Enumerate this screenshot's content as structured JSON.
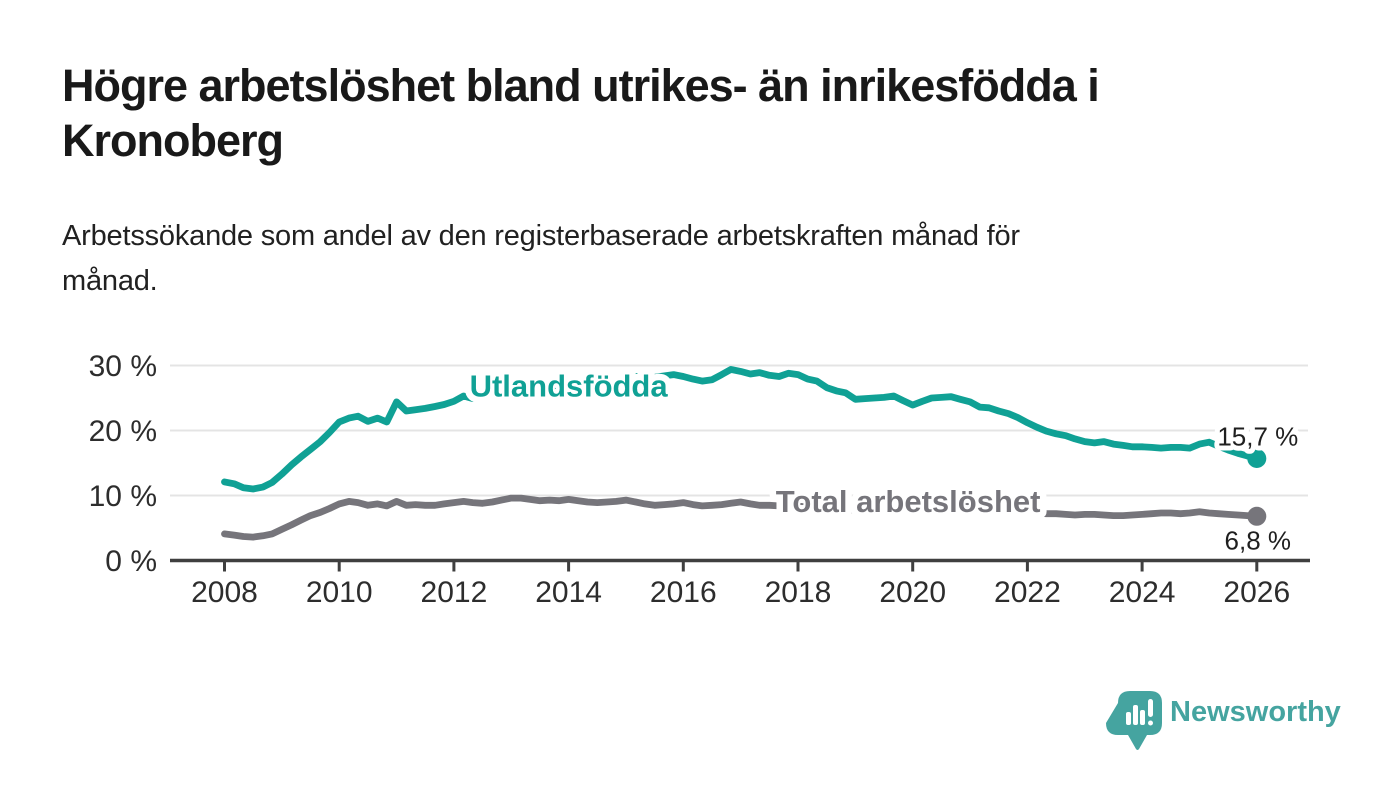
{
  "header": {
    "title_line1": "Högre arbetslöshet bland utrikes- än inrikesfödda i",
    "title_line2": "Kronoberg",
    "subtitle_line1": "Arbetssökande som andel av den registerbaserade arbetskraften månad för",
    "subtitle_line2": "månad."
  },
  "branding": {
    "logo_text": "Newsworthy",
    "logo_icon": "newsworthy-pin-barchart-icon",
    "logo_color": "#45a4a0"
  },
  "chart_data": {
    "type": "line",
    "title": "Högre arbetslöshet bland utrikes- än inrikesfödda i Kronoberg",
    "subtitle": "Arbetssökande som andel av den registerbaserade arbetskraften månad för månad.",
    "unit": "%",
    "grid": "horizontal",
    "colors": {
      "grid": "#e4e4e4",
      "axis": "#3f3f3f",
      "tick_text": "#2d2d2d"
    },
    "x_axis": {
      "ticks": [
        "2008",
        "2010",
        "2012",
        "2014",
        "2016",
        "2018",
        "2020",
        "2022",
        "2024",
        "2026"
      ],
      "range": [
        2008,
        2026
      ]
    },
    "y_axis": {
      "ticks": [
        0,
        10,
        20,
        30
      ],
      "tick_suffix": " %",
      "range": [
        0,
        31
      ]
    },
    "series": [
      {
        "name": "Utlandsfödda",
        "color": "#10a195",
        "end_label": "15,7 %",
        "end_value": 15.7,
        "label_at": {
          "year": 2014.0,
          "value": 25.2
        },
        "points": [
          [
            2008.0,
            12.1
          ],
          [
            2008.17,
            11.8
          ],
          [
            2008.33,
            11.2
          ],
          [
            2008.5,
            11.0
          ],
          [
            2008.67,
            11.3
          ],
          [
            2008.83,
            12.0
          ],
          [
            2009.0,
            13.3
          ],
          [
            2009.17,
            14.7
          ],
          [
            2009.33,
            15.9
          ],
          [
            2009.5,
            17.1
          ],
          [
            2009.67,
            18.3
          ],
          [
            2009.83,
            19.7
          ],
          [
            2010.0,
            21.3
          ],
          [
            2010.17,
            21.9
          ],
          [
            2010.33,
            22.2
          ],
          [
            2010.5,
            21.4
          ],
          [
            2010.67,
            21.9
          ],
          [
            2010.83,
            21.3
          ],
          [
            2011.0,
            24.4
          ],
          [
            2011.17,
            23.0
          ],
          [
            2011.33,
            23.2
          ],
          [
            2011.5,
            23.4
          ],
          [
            2011.67,
            23.7
          ],
          [
            2011.83,
            24.0
          ],
          [
            2012.0,
            24.5
          ],
          [
            2012.17,
            25.3
          ],
          [
            2012.33,
            24.9
          ],
          [
            2012.5,
            25.1
          ],
          [
            2012.67,
            25.4
          ],
          [
            2012.83,
            25.7
          ],
          [
            2013.0,
            26.3
          ],
          [
            2013.17,
            26.5
          ],
          [
            2013.33,
            26.3
          ],
          [
            2013.5,
            26.5
          ],
          [
            2013.67,
            26.7
          ],
          [
            2013.83,
            27.0
          ],
          [
            2014.0,
            27.4
          ],
          [
            2014.17,
            27.2
          ],
          [
            2014.33,
            27.1
          ],
          [
            2014.5,
            27.3
          ],
          [
            2014.67,
            27.5
          ],
          [
            2014.83,
            27.8
          ],
          [
            2015.0,
            28.2
          ],
          [
            2015.17,
            28.3
          ],
          [
            2015.33,
            28.1
          ],
          [
            2015.5,
            28.2
          ],
          [
            2015.67,
            28.4
          ],
          [
            2015.83,
            28.6
          ],
          [
            2016.0,
            28.3
          ],
          [
            2016.17,
            27.9
          ],
          [
            2016.33,
            27.6
          ],
          [
            2016.5,
            27.8
          ],
          [
            2016.67,
            28.6
          ],
          [
            2016.83,
            29.4
          ],
          [
            2017.0,
            29.1
          ],
          [
            2017.17,
            28.7
          ],
          [
            2017.33,
            28.9
          ],
          [
            2017.5,
            28.5
          ],
          [
            2017.67,
            28.3
          ],
          [
            2017.83,
            28.8
          ],
          [
            2018.0,
            28.6
          ],
          [
            2018.17,
            27.9
          ],
          [
            2018.33,
            27.6
          ],
          [
            2018.5,
            26.6
          ],
          [
            2018.67,
            26.1
          ],
          [
            2018.83,
            25.8
          ],
          [
            2019.0,
            24.8
          ],
          [
            2019.17,
            24.9
          ],
          [
            2019.33,
            25.0
          ],
          [
            2019.5,
            25.1
          ],
          [
            2019.67,
            25.3
          ],
          [
            2019.83,
            24.6
          ],
          [
            2020.0,
            23.9
          ],
          [
            2020.17,
            24.5
          ],
          [
            2020.33,
            25.0
          ],
          [
            2020.5,
            25.1
          ],
          [
            2020.67,
            25.2
          ],
          [
            2020.83,
            24.8
          ],
          [
            2021.0,
            24.4
          ],
          [
            2021.17,
            23.6
          ],
          [
            2021.33,
            23.5
          ],
          [
            2021.5,
            23.0
          ],
          [
            2021.67,
            22.6
          ],
          [
            2021.83,
            22.0
          ],
          [
            2022.0,
            21.2
          ],
          [
            2022.17,
            20.5
          ],
          [
            2022.33,
            19.9
          ],
          [
            2022.5,
            19.5
          ],
          [
            2022.67,
            19.2
          ],
          [
            2022.83,
            18.7
          ],
          [
            2023.0,
            18.3
          ],
          [
            2023.17,
            18.1
          ],
          [
            2023.33,
            18.3
          ],
          [
            2023.5,
            17.9
          ],
          [
            2023.67,
            17.7
          ],
          [
            2023.83,
            17.5
          ],
          [
            2024.0,
            17.5
          ],
          [
            2024.17,
            17.4
          ],
          [
            2024.33,
            17.3
          ],
          [
            2024.5,
            17.4
          ],
          [
            2024.67,
            17.4
          ],
          [
            2024.83,
            17.3
          ],
          [
            2025.0,
            17.9
          ],
          [
            2025.17,
            18.2
          ],
          [
            2025.33,
            17.6
          ],
          [
            2025.5,
            17.0
          ],
          [
            2025.67,
            16.5
          ],
          [
            2025.83,
            16.1
          ],
          [
            2026.0,
            15.7
          ]
        ]
      },
      {
        "name": "Total arbetslöshet",
        "color": "#76757b",
        "end_label": "6,8 %",
        "end_value": 6.8,
        "label_at": {
          "year": 2019.92,
          "value": 7.45
        },
        "points": [
          [
            2008.0,
            4.1
          ],
          [
            2008.17,
            3.9
          ],
          [
            2008.33,
            3.7
          ],
          [
            2008.5,
            3.6
          ],
          [
            2008.67,
            3.8
          ],
          [
            2008.83,
            4.1
          ],
          [
            2009.0,
            4.8
          ],
          [
            2009.17,
            5.5
          ],
          [
            2009.33,
            6.2
          ],
          [
            2009.5,
            6.9
          ],
          [
            2009.67,
            7.4
          ],
          [
            2009.83,
            8.0
          ],
          [
            2010.0,
            8.7
          ],
          [
            2010.17,
            9.1
          ],
          [
            2010.33,
            8.9
          ],
          [
            2010.5,
            8.5
          ],
          [
            2010.67,
            8.7
          ],
          [
            2010.83,
            8.4
          ],
          [
            2011.0,
            9.1
          ],
          [
            2011.17,
            8.5
          ],
          [
            2011.33,
            8.6
          ],
          [
            2011.5,
            8.5
          ],
          [
            2011.67,
            8.5
          ],
          [
            2011.83,
            8.7
          ],
          [
            2012.0,
            8.9
          ],
          [
            2012.17,
            9.1
          ],
          [
            2012.33,
            8.9
          ],
          [
            2012.5,
            8.8
          ],
          [
            2012.67,
            9.0
          ],
          [
            2012.83,
            9.3
          ],
          [
            2013.0,
            9.6
          ],
          [
            2013.17,
            9.6
          ],
          [
            2013.33,
            9.4
          ],
          [
            2013.5,
            9.2
          ],
          [
            2013.67,
            9.3
          ],
          [
            2013.83,
            9.2
          ],
          [
            2014.0,
            9.4
          ],
          [
            2014.17,
            9.2
          ],
          [
            2014.33,
            9.0
          ],
          [
            2014.5,
            8.9
          ],
          [
            2014.67,
            9.0
          ],
          [
            2014.83,
            9.1
          ],
          [
            2015.0,
            9.3
          ],
          [
            2015.17,
            9.0
          ],
          [
            2015.33,
            8.7
          ],
          [
            2015.5,
            8.5
          ],
          [
            2015.67,
            8.6
          ],
          [
            2015.83,
            8.7
          ],
          [
            2016.0,
            8.9
          ],
          [
            2016.17,
            8.6
          ],
          [
            2016.33,
            8.4
          ],
          [
            2016.5,
            8.5
          ],
          [
            2016.67,
            8.6
          ],
          [
            2016.83,
            8.8
          ],
          [
            2017.0,
            9.0
          ],
          [
            2017.17,
            8.7
          ],
          [
            2017.33,
            8.5
          ],
          [
            2017.5,
            8.5
          ],
          [
            2017.67,
            8.4
          ],
          [
            2017.83,
            8.3
          ],
          [
            2018.0,
            8.4
          ],
          [
            2018.17,
            8.2
          ],
          [
            2018.33,
            8.0
          ],
          [
            2018.5,
            7.9
          ],
          [
            2018.67,
            7.8
          ],
          [
            2018.83,
            7.7
          ],
          [
            2019.0,
            7.8
          ],
          [
            2019.17,
            7.7
          ],
          [
            2019.33,
            7.6
          ],
          [
            2019.5,
            7.6
          ],
          [
            2019.67,
            7.7
          ],
          [
            2019.83,
            7.8
          ],
          [
            2020.0,
            8.0
          ],
          [
            2020.17,
            8.5
          ],
          [
            2020.33,
            8.8
          ],
          [
            2020.5,
            8.9
          ],
          [
            2020.67,
            8.8
          ],
          [
            2020.83,
            8.6
          ],
          [
            2021.0,
            8.5
          ],
          [
            2021.17,
            8.3
          ],
          [
            2021.33,
            8.1
          ],
          [
            2021.5,
            7.9
          ],
          [
            2021.67,
            7.7
          ],
          [
            2021.83,
            7.5
          ],
          [
            2022.0,
            7.4
          ],
          [
            2022.17,
            7.3
          ],
          [
            2022.33,
            7.2
          ],
          [
            2022.5,
            7.2
          ],
          [
            2022.67,
            7.1
          ],
          [
            2022.83,
            7.0
          ],
          [
            2023.0,
            7.1
          ],
          [
            2023.17,
            7.1
          ],
          [
            2023.33,
            7.0
          ],
          [
            2023.5,
            6.9
          ],
          [
            2023.67,
            6.9
          ],
          [
            2023.83,
            7.0
          ],
          [
            2024.0,
            7.1
          ],
          [
            2024.17,
            7.2
          ],
          [
            2024.33,
            7.3
          ],
          [
            2024.5,
            7.3
          ],
          [
            2024.67,
            7.2
          ],
          [
            2024.83,
            7.3
          ],
          [
            2025.0,
            7.5
          ],
          [
            2025.17,
            7.3
          ],
          [
            2025.33,
            7.2
          ],
          [
            2025.5,
            7.1
          ],
          [
            2025.67,
            7.0
          ],
          [
            2025.83,
            6.9
          ],
          [
            2026.0,
            6.8
          ]
        ]
      }
    ]
  }
}
